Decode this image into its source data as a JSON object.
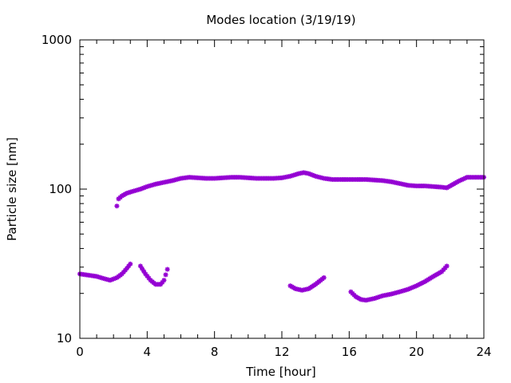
{
  "chart_data": {
    "type": "scatter",
    "title": "Modes location (3/19/19)",
    "xlabel": "Time [hour]",
    "ylabel": "Particle size [nm]",
    "xlim": [
      0,
      24
    ],
    "ylim": [
      10,
      1000
    ],
    "yscale": "log",
    "x_ticks": [
      0,
      4,
      8,
      12,
      16,
      20,
      24
    ],
    "y_ticks": [
      10,
      100,
      1000
    ],
    "marker_color": "#9400d3",
    "grid": false,
    "series": [
      {
        "points": [
          [
            2.2,
            77
          ],
          [
            2.3,
            86
          ],
          [
            2.5,
            90
          ],
          [
            2.8,
            94
          ],
          [
            3.2,
            97
          ],
          [
            3.6,
            100
          ],
          [
            4.0,
            104
          ],
          [
            4.5,
            108
          ],
          [
            5.0,
            111
          ],
          [
            5.5,
            114
          ],
          [
            6.0,
            118
          ],
          [
            6.5,
            120
          ],
          [
            7.0,
            119
          ],
          [
            7.5,
            118
          ],
          [
            8.0,
            118
          ],
          [
            8.5,
            119
          ],
          [
            9.0,
            120
          ],
          [
            9.5,
            120
          ],
          [
            10.0,
            119
          ],
          [
            10.5,
            118
          ],
          [
            11.0,
            118
          ],
          [
            11.5,
            118
          ],
          [
            12.0,
            119
          ],
          [
            12.5,
            122
          ],
          [
            13.0,
            127
          ],
          [
            13.3,
            129
          ],
          [
            13.6,
            127
          ],
          [
            14.0,
            122
          ],
          [
            14.5,
            118
          ],
          [
            15.0,
            116
          ],
          [
            15.5,
            116
          ],
          [
            16.0,
            116
          ],
          [
            16.5,
            116
          ],
          [
            17.0,
            116
          ],
          [
            17.5,
            115
          ],
          [
            18.0,
            114
          ],
          [
            18.5,
            112
          ],
          [
            19.0,
            109
          ],
          [
            19.5,
            106
          ],
          [
            20.0,
            105
          ],
          [
            20.5,
            105
          ],
          [
            21.0,
            104
          ],
          [
            21.5,
            103
          ],
          [
            21.8,
            102
          ],
          [
            22.0,
            105
          ],
          [
            22.5,
            113
          ],
          [
            23.0,
            120
          ],
          [
            23.5,
            120
          ],
          [
            24.0,
            120
          ]
        ]
      },
      {
        "points": [
          [
            0.0,
            27
          ],
          [
            0.5,
            26.5
          ],
          [
            1.0,
            26
          ],
          [
            1.5,
            25
          ],
          [
            1.8,
            24.5
          ],
          [
            2.2,
            25.5
          ],
          [
            2.5,
            27
          ],
          [
            2.8,
            29.5
          ],
          [
            3.0,
            31.5
          ]
        ]
      },
      {
        "points": [
          [
            3.6,
            30.5
          ],
          [
            3.9,
            27
          ],
          [
            4.2,
            24.5
          ],
          [
            4.5,
            23
          ],
          [
            4.8,
            23
          ],
          [
            5.0,
            24.5
          ],
          [
            5.2,
            29
          ]
        ]
      },
      {
        "points": [
          [
            12.5,
            22.5
          ],
          [
            12.8,
            21.5
          ],
          [
            13.2,
            21
          ],
          [
            13.6,
            21.5
          ],
          [
            14.0,
            23
          ],
          [
            14.5,
            25.5
          ]
        ]
      },
      {
        "points": [
          [
            16.1,
            20.5
          ],
          [
            16.4,
            19
          ],
          [
            16.7,
            18.2
          ],
          [
            17.0,
            18
          ],
          [
            17.5,
            18.5
          ],
          [
            18.0,
            19.3
          ],
          [
            18.5,
            19.8
          ],
          [
            19.0,
            20.5
          ],
          [
            19.5,
            21.3
          ],
          [
            20.0,
            22.5
          ],
          [
            20.5,
            24
          ],
          [
            21.0,
            26
          ],
          [
            21.5,
            28
          ],
          [
            21.8,
            30.5
          ]
        ]
      }
    ]
  }
}
